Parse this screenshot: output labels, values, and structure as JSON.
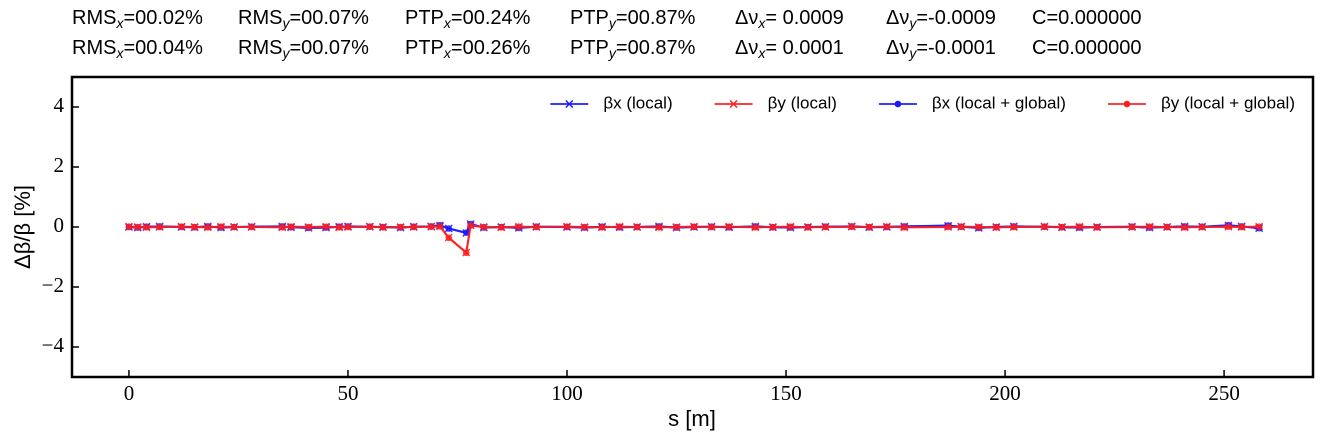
{
  "chart_data": {
    "type": "line",
    "header": [
      [
        {
          "label": "RMS",
          "sub": "x",
          "value": "=00.02%"
        },
        {
          "label": "RMS",
          "sub": "y",
          "value": "=00.07%"
        },
        {
          "label": "PTP",
          "sub": "x",
          "value": "=00.24%"
        },
        {
          "label": "PTP",
          "sub": "y",
          "value": "=00.87%"
        },
        {
          "label": "Δν",
          "sub": "x",
          "value": "= 0.0009"
        },
        {
          "label": "Δν",
          "sub": "y",
          "value": "=-0.0009"
        },
        {
          "label": "C=0.000000"
        }
      ],
      [
        {
          "label": "RMS",
          "sub": "x",
          "value": "=00.04%"
        },
        {
          "label": "RMS",
          "sub": "y",
          "value": "=00.07%"
        },
        {
          "label": "PTP",
          "sub": "x",
          "value": "=00.26%"
        },
        {
          "label": "PTP",
          "sub": "y",
          "value": "=00.87%"
        },
        {
          "label": "Δν",
          "sub": "x",
          "value": "= 0.0001"
        },
        {
          "label": "Δν",
          "sub": "y",
          "value": "=-0.0001"
        },
        {
          "label": "C=0.000000"
        }
      ]
    ],
    "x_label": "s [m]",
    "y_label": "Δβ/β [%]",
    "xlim": [
      -13,
      270.3
    ],
    "ylim": [
      -5,
      5
    ],
    "xticks": [
      0,
      50,
      100,
      150,
      200,
      250
    ],
    "yticks": [
      {
        "value": -4,
        "label": "−4"
      },
      {
        "value": -2,
        "label": "−2"
      },
      0,
      2,
      4
    ],
    "legend": "upper right",
    "x": [
      0,
      2,
      4,
      7,
      12,
      15,
      18,
      21,
      24,
      28,
      35,
      37,
      41,
      45,
      48,
      50,
      55,
      58,
      62,
      65,
      69,
      71,
      73,
      77,
      78,
      81,
      85,
      89,
      93,
      100,
      104,
      108,
      112,
      116,
      121,
      125,
      129,
      133,
      137,
      143,
      147,
      151,
      155,
      159,
      165,
      169,
      173,
      177,
      187,
      190,
      194,
      198,
      202,
      209,
      213,
      217,
      221,
      229,
      233,
      237,
      241,
      245,
      251,
      254,
      258
    ],
    "series": [
      {
        "name": "βx (local)",
        "color": "#1a1aff",
        "marker": "x",
        "values": [
          0.0,
          -0.02,
          0.01,
          0.02,
          0.0,
          -0.01,
          0.02,
          -0.02,
          0.0,
          0.01,
          0.02,
          -0.01,
          -0.03,
          -0.02,
          0.01,
          0.02,
          0.01,
          0.0,
          -0.02,
          0.01,
          0.02,
          0.05,
          -0.05,
          -0.2,
          0.1,
          -0.02,
          0.0,
          -0.03,
          0.01,
          0.0,
          -0.02,
          0.01,
          -0.01,
          0.0,
          0.02,
          -0.02,
          0.0,
          0.01,
          -0.01,
          0.02,
          -0.01,
          -0.02,
          0.0,
          0.01,
          0.02,
          -0.01,
          0.0,
          0.02,
          0.04,
          0.01,
          -0.03,
          0.0,
          0.02,
          0.01,
          -0.01,
          -0.02,
          0.0,
          0.01,
          -0.02,
          0.0,
          0.02,
          0.01,
          0.05,
          0.02,
          -0.04
        ]
      },
      {
        "name": "βy (local)",
        "color": "#ff1f1f",
        "marker": "x",
        "values": [
          0.01,
          0.0,
          -0.01,
          0.0,
          0.01,
          0.0,
          -0.01,
          0.01,
          0.0,
          0.0,
          -0.01,
          0.01,
          0.0,
          0.01,
          -0.01,
          0.0,
          0.01,
          -0.01,
          0.0,
          0.0,
          0.01,
          0.02,
          -0.35,
          -0.85,
          0.05,
          0.0,
          -0.01,
          0.01,
          0.0,
          0.01,
          0.0,
          -0.01,
          0.01,
          0.0,
          -0.01,
          0.0,
          0.01,
          0.0,
          0.01,
          -0.01,
          0.0,
          0.01,
          -0.01,
          0.0,
          0.01,
          0.0,
          0.01,
          -0.01,
          0.0,
          0.01,
          0.0,
          -0.01,
          0.0,
          0.01,
          0.0,
          0.01,
          -0.01,
          0.0,
          0.01,
          0.0,
          -0.01,
          0.0,
          0.01,
          0.0,
          0.01
        ]
      },
      {
        "name": "βx (local + global)",
        "color": "#1a1aff",
        "marker": "o",
        "values": [
          0.0,
          -0.02,
          0.01,
          0.02,
          0.0,
          -0.01,
          0.02,
          -0.02,
          0.0,
          0.01,
          0.02,
          -0.01,
          -0.03,
          -0.02,
          0.01,
          0.02,
          0.01,
          0.0,
          -0.02,
          0.01,
          0.02,
          0.06,
          -0.05,
          -0.19,
          0.1,
          -0.02,
          0.0,
          -0.03,
          0.01,
          0.0,
          -0.02,
          0.01,
          -0.01,
          0.0,
          0.02,
          -0.02,
          0.0,
          0.01,
          -0.01,
          0.02,
          -0.01,
          -0.02,
          0.0,
          0.01,
          0.02,
          -0.01,
          0.0,
          0.02,
          0.05,
          0.01,
          -0.03,
          0.0,
          0.02,
          0.01,
          -0.01,
          -0.02,
          0.0,
          0.01,
          -0.02,
          0.0,
          0.02,
          0.01,
          0.06,
          0.02,
          -0.04
        ]
      },
      {
        "name": "βy (local + global)",
        "color": "#ff1f1f",
        "marker": "o",
        "values": [
          0.01,
          0.0,
          -0.01,
          0.0,
          0.01,
          0.0,
          -0.01,
          0.01,
          0.0,
          0.0,
          -0.01,
          0.01,
          0.0,
          0.01,
          -0.01,
          0.0,
          0.01,
          -0.01,
          0.0,
          0.0,
          0.01,
          0.02,
          -0.36,
          -0.86,
          0.05,
          0.0,
          -0.01,
          0.01,
          0.0,
          0.01,
          0.0,
          -0.01,
          0.01,
          0.0,
          -0.01,
          0.0,
          0.01,
          0.0,
          0.01,
          -0.01,
          0.0,
          0.01,
          -0.01,
          0.0,
          0.01,
          0.0,
          0.01,
          -0.01,
          0.0,
          0.01,
          0.0,
          -0.01,
          0.0,
          0.01,
          0.0,
          0.01,
          -0.01,
          0.0,
          0.01,
          0.0,
          -0.01,
          0.0,
          0.01,
          0.0,
          0.01
        ]
      }
    ]
  }
}
